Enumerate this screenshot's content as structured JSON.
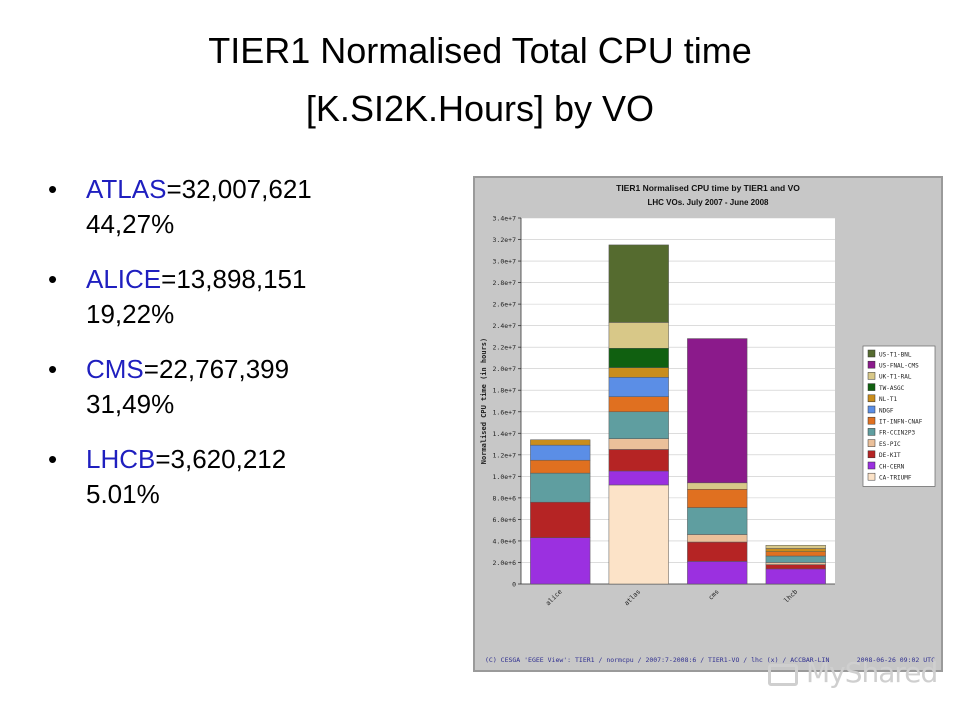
{
  "slide": {
    "title_line1": "TIER1 Normalised Total CPU time",
    "title_line2": "[K.SI2K.Hours] by VO",
    "bullets": [
      {
        "vo": "ATLAS",
        "rest": "=32,007,621",
        "pct": "44,27%"
      },
      {
        "vo": "ALICE",
        "rest": "=13,898,151",
        "pct": "19,22%"
      },
      {
        "vo": "CMS",
        "rest": "=22,767,399",
        "pct": "31,49%"
      },
      {
        "vo": "LHCB",
        "rest": "=3,620,212",
        "pct": "5.01%"
      }
    ]
  },
  "footer": {
    "left": "(C) CESGA 'EGEE View': TIER1 / normcpu / 2007:7-2008:6 / TIER1-VO / lhc (x) / ACCBAR-LIN",
    "right": "2008-06-26 09:02 UTC"
  },
  "watermark": "MyShared",
  "chart_data": {
    "type": "bar",
    "stacked": true,
    "title": "TIER1 Normalised CPU time by TIER1 and VO",
    "subtitle": "LHC VOs. July 2007 - June 2008",
    "ylabel": "Normalised CPU time (in hours)",
    "xlabel": "",
    "ylim": [
      0,
      34000000
    ],
    "yticks": [
      "0",
      "2.0e+6",
      "4.0e+6",
      "6.0e+6",
      "8.0e+6",
      "1.0e+7",
      "1.2e+7",
      "1.4e+7",
      "1.6e+7",
      "1.8e+7",
      "2.0e+7",
      "2.2e+7",
      "2.4e+7",
      "2.6e+7",
      "2.8e+7",
      "3.0e+7",
      "3.2e+7",
      "3.4e+7"
    ],
    "grid": true,
    "legend_position": "right",
    "categories": [
      "alice",
      "atlas",
      "cms",
      "lhcb"
    ],
    "series": [
      {
        "name": "CA-TRIUMF",
        "color": "#fce3c8",
        "values": [
          0,
          9200000,
          0,
          0
        ]
      },
      {
        "name": "CH-CERN",
        "color": "#9b30e0",
        "values": [
          4300000,
          1300000,
          2100000,
          1400000
        ]
      },
      {
        "name": "DE-KIT",
        "color": "#b52424",
        "values": [
          3300000,
          2000000,
          1800000,
          400000
        ]
      },
      {
        "name": "ES-PIC",
        "color": "#ebc09a",
        "values": [
          0,
          1000000,
          700000,
          200000
        ]
      },
      {
        "name": "FR-CCIN2P3",
        "color": "#5f9ea0",
        "values": [
          2700000,
          2500000,
          2500000,
          600000
        ]
      },
      {
        "name": "IT-INFN-CNAF",
        "color": "#e07020",
        "values": [
          1200000,
          1400000,
          1700000,
          400000
        ]
      },
      {
        "name": "NDGF",
        "color": "#5b8ee6",
        "values": [
          1400000,
          1800000,
          0,
          0
        ]
      },
      {
        "name": "NL-T1",
        "color": "#c98d1c",
        "values": [
          500000,
          900000,
          0,
          300000
        ]
      },
      {
        "name": "TW-ASGC",
        "color": "#106010",
        "values": [
          0,
          1800000,
          0,
          0
        ]
      },
      {
        "name": "UK-T1-RAL",
        "color": "#d8c888",
        "values": [
          0,
          2400000,
          600000,
          300000
        ]
      },
      {
        "name": "US-FNAL-CMS",
        "color": "#8b1a8b",
        "values": [
          0,
          0,
          13400000,
          0
        ]
      },
      {
        "name": "US-T1-BNL",
        "color": "#556b2f",
        "values": [
          0,
          7200000,
          0,
          0
        ]
      }
    ]
  }
}
